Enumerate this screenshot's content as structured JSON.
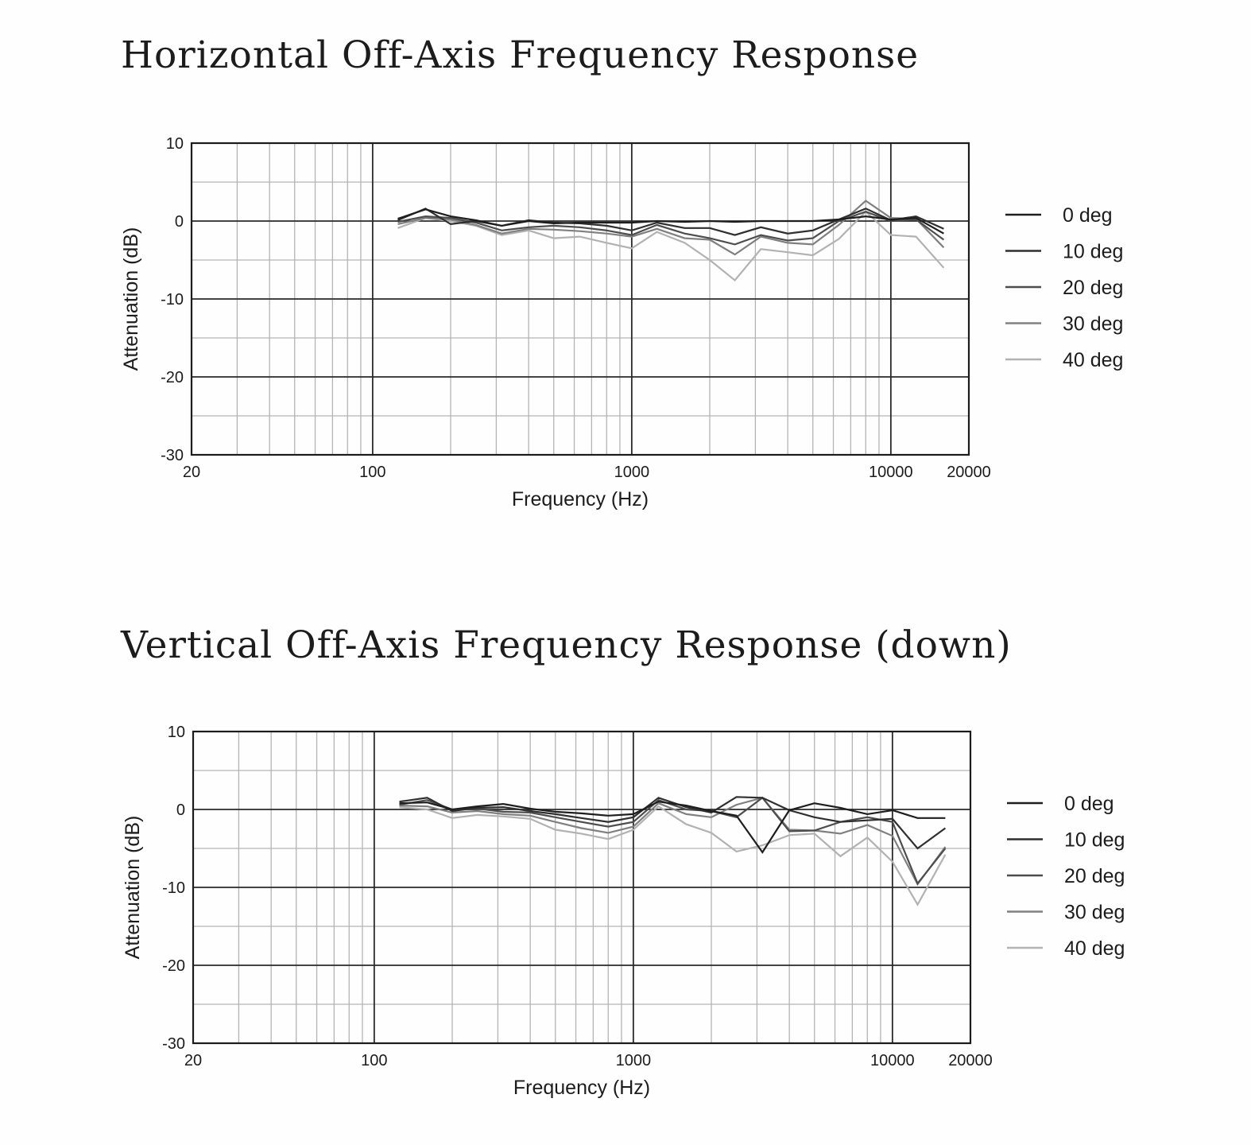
{
  "chart_data": [
    {
      "type": "line",
      "title": "Horizontal Off-Axis Frequency Response",
      "xlabel": "Frequency (Hz)",
      "ylabel": "Attenuation (dB)",
      "x_scale": "log",
      "xlim": [
        20,
        20000
      ],
      "ylim": [
        -30,
        10
      ],
      "x_ticks": [
        20,
        100,
        1000,
        10000,
        20000
      ],
      "x_tick_labels": [
        "20",
        "100",
        "1000",
        "10000",
        "20000"
      ],
      "y_ticks": [
        10,
        0,
        -10,
        -20,
        -30
      ],
      "y_tick_labels": [
        "10",
        "0",
        "-10",
        "-20",
        "-30"
      ],
      "grid": true,
      "legend_position": "right",
      "x": [
        125,
        160,
        200,
        250,
        315,
        400,
        500,
        630,
        800,
        1000,
        1250,
        1600,
        2000,
        2500,
        3150,
        4000,
        5000,
        6300,
        8000,
        10000,
        12500,
        16000
      ],
      "series": [
        {
          "name": "0 deg",
          "color": "#1e1e1e",
          "values": [
            0.3,
            1.5,
            0.6,
            0.1,
            -0.6,
            0.0,
            -0.3,
            -0.2,
            -0.2,
            -0.2,
            0.0,
            -0.1,
            0.0,
            -0.1,
            0.0,
            0.0,
            0.0,
            0.2,
            0.6,
            0.2,
            0.4,
            -1.6
          ]
        },
        {
          "name": "10 deg",
          "color": "#2f2f2f",
          "values": [
            0.1,
            1.6,
            -0.4,
            0.0,
            -0.6,
            0.1,
            -0.2,
            -0.3,
            -0.6,
            -1.2,
            -0.2,
            -0.9,
            -0.9,
            -1.8,
            -0.8,
            -1.6,
            -1.2,
            0.2,
            1.6,
            0.1,
            0.6,
            -1.0
          ]
        },
        {
          "name": "20 deg",
          "color": "#4d4d4d",
          "values": [
            -0.1,
            0.6,
            0.4,
            -0.2,
            -1.2,
            -0.8,
            -0.6,
            -0.8,
            -1.2,
            -1.8,
            -0.5,
            -1.6,
            -2.2,
            -3.0,
            -1.8,
            -2.5,
            -2.2,
            0.0,
            1.2,
            0.0,
            0.2,
            -2.4
          ]
        },
        {
          "name": "30 deg",
          "color": "#808080",
          "values": [
            -0.4,
            0.4,
            0.2,
            -0.5,
            -1.6,
            -1.0,
            -1.1,
            -1.3,
            -1.6,
            -2.0,
            -1.0,
            -2.2,
            -2.4,
            -4.3,
            -2.0,
            -2.8,
            -3.0,
            -0.5,
            2.6,
            0.4,
            0.3,
            -3.4
          ]
        },
        {
          "name": "40 deg",
          "color": "#b2b2b2",
          "values": [
            -0.9,
            0.4,
            0.0,
            -0.6,
            -1.8,
            -1.2,
            -2.2,
            -2.0,
            -2.8,
            -3.5,
            -1.4,
            -2.8,
            -5.0,
            -7.6,
            -3.6,
            -4.0,
            -4.4,
            -2.3,
            1.2,
            -1.8,
            -2.0,
            -6.0
          ]
        }
      ]
    },
    {
      "type": "line",
      "title": "Vertical Off-Axis Frequency Response (down)",
      "xlabel": "Frequency (Hz)",
      "ylabel": "Attenuation (dB)",
      "x_scale": "log",
      "xlim": [
        20,
        20000
      ],
      "ylim": [
        -30,
        10
      ],
      "x_ticks": [
        20,
        100,
        1000,
        10000,
        20000
      ],
      "x_tick_labels": [
        "20",
        "100",
        "1000",
        "10000",
        "20000"
      ],
      "y_ticks": [
        10,
        0,
        -10,
        -20,
        -30
      ],
      "y_tick_labels": [
        "10",
        "0",
        "-10",
        "-20",
        "-30"
      ],
      "grid": true,
      "legend_position": "right",
      "x": [
        125,
        160,
        200,
        250,
        315,
        400,
        500,
        630,
        800,
        1000,
        1250,
        1600,
        2000,
        2500,
        3150,
        4000,
        5000,
        6300,
        8000,
        10000,
        12500,
        16000
      ],
      "series": [
        {
          "name": "0 deg",
          "color": "#1e1e1e",
          "values": [
            0.8,
            0.9,
            0.0,
            0.4,
            0.7,
            0.1,
            -0.3,
            -0.5,
            -0.8,
            -0.6,
            1.0,
            0.5,
            -0.2,
            -0.8,
            -5.5,
            -0.1,
            0.8,
            0.2,
            -0.6,
            -0.1,
            -1.1,
            -1.1
          ]
        },
        {
          "name": "10 deg",
          "color": "#2f2f2f",
          "values": [
            1.0,
            1.5,
            -0.2,
            0.2,
            0.3,
            -0.2,
            -0.6,
            -1.1,
            -1.6,
            -1.0,
            1.5,
            0.3,
            -0.4,
            1.6,
            1.5,
            -0.1,
            -1.0,
            -1.6,
            -1.4,
            -1.2,
            -5.0,
            -2.4
          ]
        },
        {
          "name": "20 deg",
          "color": "#4d4d4d",
          "values": [
            0.6,
            1.2,
            0.0,
            0.1,
            -0.3,
            -0.4,
            -1.0,
            -1.6,
            -2.2,
            -1.6,
            1.2,
            0.0,
            -0.2,
            -1.0,
            1.5,
            -2.8,
            -2.7,
            -1.6,
            -1.0,
            -1.6,
            -9.5,
            -5.0
          ]
        },
        {
          "name": "30 deg",
          "color": "#808080",
          "values": [
            0.5,
            0.4,
            -0.4,
            -0.2,
            -0.6,
            -0.8,
            -1.6,
            -2.4,
            -3.0,
            -2.2,
            0.8,
            -0.6,
            -1.0,
            0.6,
            1.5,
            -2.6,
            -2.7,
            -3.1,
            -2.0,
            -3.4,
            -9.6,
            -4.8
          ]
        },
        {
          "name": "40 deg",
          "color": "#b2b2b2",
          "values": [
            0.3,
            0.0,
            -1.1,
            -0.7,
            -0.9,
            -1.2,
            -2.6,
            -3.1,
            -3.8,
            -2.6,
            0.4,
            -1.9,
            -3.0,
            -5.4,
            -4.6,
            -3.3,
            -3.1,
            -6.0,
            -3.6,
            -6.7,
            -12.2,
            -5.8
          ]
        }
      ]
    }
  ]
}
